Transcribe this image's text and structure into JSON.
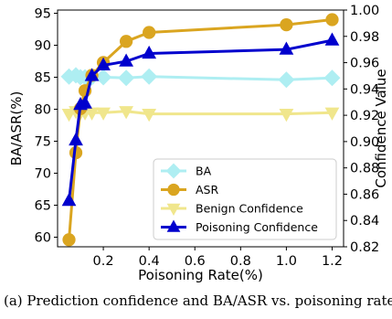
{
  "caption": "(a) Prediction confidence and BA/ASR vs. poisoning rate.",
  "chart_data": {
    "type": "line",
    "xlabel": "Poisoning Rate(%)",
    "ylabel_left": "BA/ASR(%)",
    "ylabel_right": "Confidence Value",
    "xlim": [
      0.0,
      1.25
    ],
    "ylim_left": [
      58.5,
      95.5
    ],
    "ylim_right": [
      0.82,
      1.0
    ],
    "xticks": [
      0.2,
      0.4,
      0.6,
      0.8,
      1.0,
      1.2
    ],
    "xtick_labels": [
      "0.2",
      "0.4",
      "0.6",
      "0.8",
      "1.0",
      "1.2"
    ],
    "yticks_left": [
      60,
      65,
      70,
      75,
      80,
      85,
      90,
      95
    ],
    "yticks_right": [
      0.82,
      0.84,
      0.86,
      0.88,
      0.9,
      0.92,
      0.94,
      0.96,
      0.98,
      1.0
    ],
    "yticks_right_labels": [
      "0.82",
      "0.84",
      "0.86",
      "0.88",
      "0.90",
      "0.92",
      "0.94",
      "0.96",
      "0.98",
      "1.00"
    ],
    "grid": false,
    "legend_position": "lower-right",
    "series": [
      {
        "name": "BA",
        "axis": "left",
        "color": "#aeeef2",
        "marker": "diamond",
        "x": [
          0.05,
          0.08,
          0.1,
          0.12,
          0.15,
          0.2,
          0.3,
          0.4,
          1.0,
          1.2
        ],
        "y": [
          85.1,
          85.3,
          85.0,
          85.0,
          85.0,
          85.0,
          84.9,
          85.1,
          84.6,
          84.9
        ]
      },
      {
        "name": "ASR",
        "axis": "left",
        "color": "#daa520",
        "marker": "circle",
        "x": [
          0.05,
          0.08,
          0.1,
          0.12,
          0.15,
          0.2,
          0.3,
          0.4,
          1.0,
          1.2
        ],
        "y": [
          59.6,
          73.2,
          80.1,
          82.9,
          85.3,
          87.3,
          90.6,
          92.0,
          93.2,
          94.0
        ]
      },
      {
        "name": "Benign Confidence",
        "axis": "right",
        "color": "#f0e68c",
        "marker": "triangle-down",
        "x": [
          0.05,
          0.08,
          0.1,
          0.12,
          0.15,
          0.2,
          0.3,
          0.4,
          1.0,
          1.2
        ],
        "y": [
          0.921,
          0.923,
          0.922,
          0.922,
          0.922,
          0.922,
          0.923,
          0.921,
          0.921,
          0.922
        ]
      },
      {
        "name": "Poisoning Confidence",
        "axis": "right",
        "color": "#0000cd",
        "marker": "triangle-up",
        "x": [
          0.05,
          0.08,
          0.1,
          0.12,
          0.15,
          0.2,
          0.3,
          0.4,
          1.0,
          1.2
        ],
        "y": [
          0.855,
          0.901,
          0.928,
          0.929,
          0.95,
          0.958,
          0.961,
          0.967,
          0.97,
          0.977
        ]
      }
    ]
  }
}
